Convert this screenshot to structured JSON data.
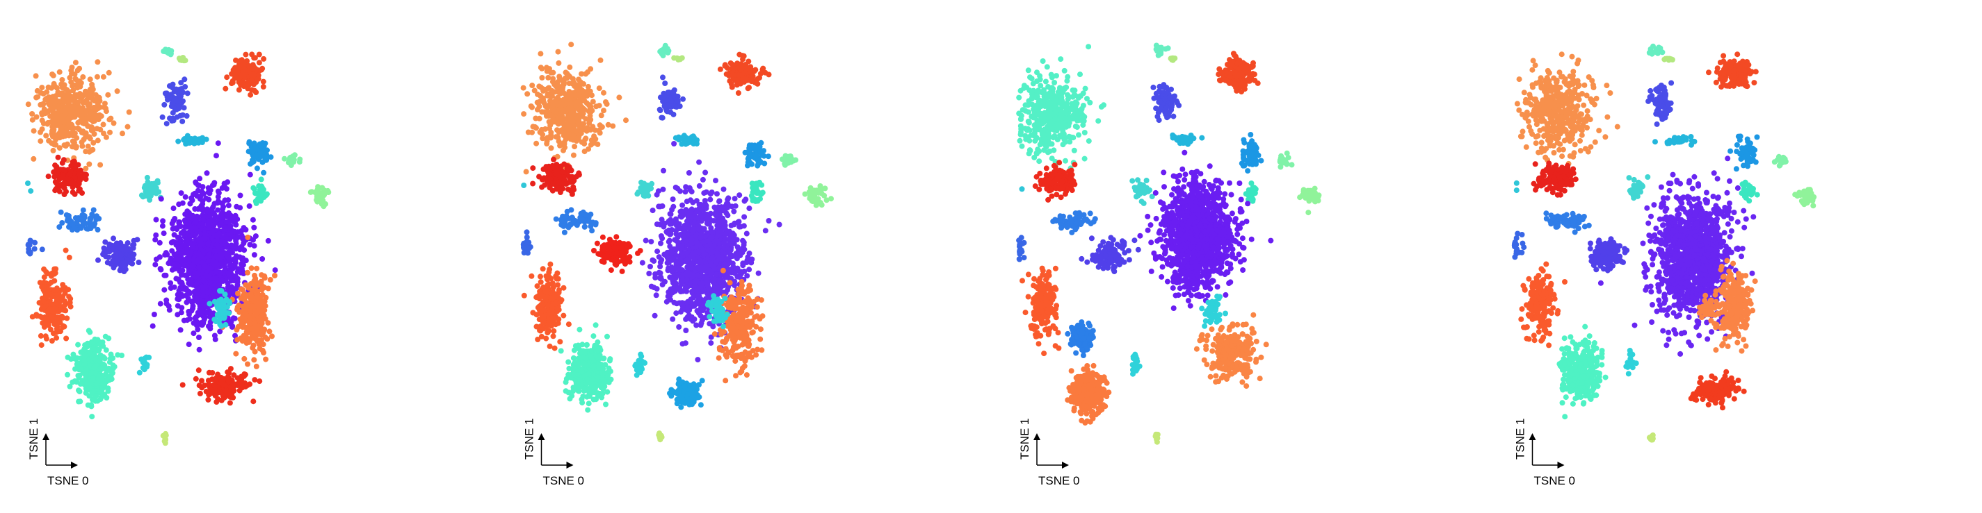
{
  "chart_data": [
    {
      "type": "scatter",
      "xlabel": "TSNE 0",
      "ylabel": "TSNE 1",
      "panel": 1,
      "seed": 1,
      "override": null,
      "clusters": [
        {
          "id": "c_orange_top",
          "center": [
            -0.62,
            0.7
          ],
          "spread": [
            0.17,
            0.17
          ],
          "n": 420,
          "color": "#f7904c"
        },
        {
          "id": "c_red_top",
          "center": [
            -0.63,
            0.38
          ],
          "spread": [
            0.08,
            0.06
          ],
          "n": 140,
          "color": "#e8221c"
        },
        {
          "id": "c_cyan_small_left",
          "center": [
            -0.9,
            0.33
          ],
          "spread": [
            0.05,
            0.03
          ],
          "n": 35,
          "color": "#2fc6d8"
        },
        {
          "id": "c_blue_mid_left",
          "center": [
            -0.57,
            0.17
          ],
          "spread": [
            0.1,
            0.04
          ],
          "n": 60,
          "color": "#2f7de8"
        },
        {
          "id": "c_blue_left",
          "center": [
            -0.88,
            0.05
          ],
          "spread": [
            0.06,
            0.05
          ],
          "n": 90,
          "color": "#3967e6"
        },
        {
          "id": "c_redorange_left",
          "center": [
            -0.72,
            -0.23
          ],
          "spread": [
            0.07,
            0.14
          ],
          "n": 180,
          "color": "#fa5a2c"
        },
        {
          "id": "c_aqua_bottom",
          "center": [
            -0.5,
            -0.55
          ],
          "spread": [
            0.1,
            0.13
          ],
          "n": 300,
          "color": "#4ff2c4"
        },
        {
          "id": "c_indigo_small",
          "center": [
            -0.36,
            0.01
          ],
          "spread": [
            0.08,
            0.06
          ],
          "n": 120,
          "color": "#5140ea"
        },
        {
          "id": "c_blue_top_small",
          "center": [
            -0.07,
            0.75
          ],
          "spread": [
            0.05,
            0.08
          ],
          "n": 70,
          "color": "#4a4de9"
        },
        {
          "id": "c_cyan_top",
          "center": [
            0.03,
            0.56
          ],
          "spread": [
            0.06,
            0.02
          ],
          "n": 40,
          "color": "#23b6dc"
        },
        {
          "id": "c_mint_top",
          "center": [
            -0.1,
            0.99
          ],
          "spread": [
            0.03,
            0.02
          ],
          "n": 15,
          "color": "#67eec1"
        },
        {
          "id": "c_green_top",
          "center": [
            -0.03,
            0.95
          ],
          "spread": [
            0.02,
            0.01
          ],
          "n": 8,
          "color": "#b3e880"
        },
        {
          "id": "c_redorange_top_right",
          "center": [
            0.32,
            0.88
          ],
          "spread": [
            0.08,
            0.06
          ],
          "n": 160,
          "color": "#f34a24"
        },
        {
          "id": "c_blue_right",
          "center": [
            0.38,
            0.49
          ],
          "spread": [
            0.05,
            0.06
          ],
          "n": 60,
          "color": "#1c97e4"
        },
        {
          "id": "c_teal_mid",
          "center": [
            -0.2,
            0.32
          ],
          "spread": [
            0.04,
            0.04
          ],
          "n": 35,
          "color": "#40d6d2"
        },
        {
          "id": "c_green_right_a",
          "center": [
            0.56,
            0.46
          ],
          "spread": [
            0.03,
            0.02
          ],
          "n": 20,
          "color": "#80f2a8"
        },
        {
          "id": "c_green_right_b",
          "center": [
            0.71,
            0.29
          ],
          "spread": [
            0.04,
            0.04
          ],
          "n": 40,
          "color": "#90f39a"
        },
        {
          "id": "c_teal_right",
          "center": [
            0.39,
            0.31
          ],
          "spread": [
            0.03,
            0.04
          ],
          "n": 30,
          "color": "#3ae6c0"
        },
        {
          "id": "c_purple_main",
          "center": [
            0.1,
            -0.01
          ],
          "spread": [
            0.18,
            0.28
          ],
          "n": 1200,
          "color": "#6a18f2"
        },
        {
          "id": "c_orange_right",
          "center": [
            0.35,
            -0.26
          ],
          "spread": [
            0.07,
            0.17
          ],
          "n": 260,
          "color": "#fa7a3e"
        },
        {
          "id": "c_red_bottom",
          "center": [
            0.2,
            -0.62
          ],
          "spread": [
            0.12,
            0.06
          ],
          "n": 160,
          "color": "#ee2e1c"
        },
        {
          "id": "c_cyan_inner",
          "center": [
            0.18,
            -0.25
          ],
          "spread": [
            0.04,
            0.06
          ],
          "n": 50,
          "color": "#2fd2da"
        },
        {
          "id": "c_yellowgreen_bottom",
          "center": [
            -0.12,
            -0.87
          ],
          "spread": [
            0.01,
            0.02
          ],
          "n": 10,
          "color": "#c5e878"
        },
        {
          "id": "c_cyan_bottom_small",
          "center": [
            -0.23,
            -0.51
          ],
          "spread": [
            0.02,
            0.05
          ],
          "n": 18,
          "color": "#2fd2da"
        }
      ]
    },
    {
      "type": "scatter",
      "xlabel": "TSNE 0",
      "ylabel": "TSNE 1",
      "panel": 2,
      "seed": 2,
      "override": {
        "c_red_top": {
          "center": [
            -0.66,
            0.38
          ],
          "color": "#e8221c"
        },
        "c_indigo_small": {
          "color": "#f0221a",
          "center": [
            -0.36,
            0.02
          ]
        },
        "c_purple_main": {
          "color": "#6a2ef2",
          "spread": [
            0.2,
            0.26
          ]
        },
        "c_orange_right": {
          "center": [
            0.3,
            -0.33
          ],
          "spread": [
            0.09,
            0.18
          ],
          "color": "#fa7a3e"
        },
        "c_red_bottom": {
          "center": [
            0.02,
            -0.65
          ],
          "spread": [
            0.06,
            0.05
          ],
          "color": "#1ca2e4"
        }
      }
    },
    {
      "type": "scatter",
      "xlabel": "TSNE 0",
      "ylabel": "TSNE 1",
      "panel": 3,
      "seed": 3,
      "override": {
        "c_orange_top": {
          "center": [
            -0.68,
            0.68
          ],
          "color": "#54f0c6"
        },
        "c_red_top": {
          "center": [
            -0.66,
            0.36
          ],
          "color": "#ee2a1c"
        },
        "c_purple_main": {
          "center": [
            0.1,
            0.1
          ],
          "spread": [
            0.17,
            0.22
          ],
          "color": "#6a1ef2"
        },
        "c_orange_right": {
          "center": [
            0.28,
            -0.46
          ],
          "spread": [
            0.12,
            0.12
          ],
          "color": "#fa8544"
        },
        "c_aqua_bottom": {
          "center": [
            -0.48,
            -0.65
          ],
          "spread": [
            0.08,
            0.09
          ],
          "color": "#fa7a3e"
        },
        "c_red_bottom": {
          "center": [
            -0.52,
            -0.38
          ],
          "spread": [
            0.05,
            0.05
          ],
          "color": "#2b7fe8"
        }
      }
    },
    {
      "type": "scatter",
      "xlabel": "TSNE 0",
      "ylabel": "TSNE 1",
      "panel": 4,
      "seed": 4,
      "override": {
        "c_purple_main": {
          "color": "#6926f2",
          "spread": [
            0.19,
            0.27
          ]
        },
        "c_orange_right": {
          "center": [
            0.32,
            -0.24
          ],
          "spread": [
            0.08,
            0.16
          ],
          "color": "#fa8446"
        },
        "c_cyan_inner": {
          "color": "#fa8446"
        },
        "c_red_bottom": {
          "center": [
            0.22,
            -0.64
          ],
          "spread": [
            0.1,
            0.05
          ],
          "color": "#f23c1e"
        }
      }
    }
  ]
}
